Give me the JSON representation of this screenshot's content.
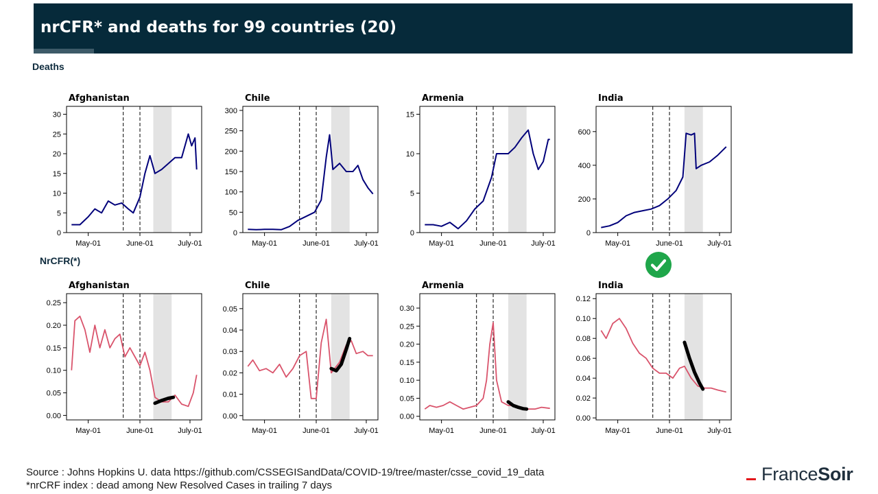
{
  "header": {
    "title": "nrCFR* and deaths for 99 countries (20)"
  },
  "sections": {
    "deaths_label": "Deaths",
    "nrcfr_label": "NrCFR(*)"
  },
  "footer": {
    "source": "Source : Johns Hopkins U. data https://github.com/CSSEGISandData/COVID-19/tree/master/csse_covid_19_data",
    "note": "*nrCRF index : dead among New Resolved  Cases in trailing 7 days"
  },
  "logo": {
    "part1": "France",
    "part2": "Soir"
  },
  "badge": {
    "icon": "checkmark-icon",
    "color": "#1fa64a",
    "under_country": "India"
  },
  "colors": {
    "deaths_line": "#00007a",
    "nrcfr_line": "#d9536b",
    "fit_line": "#000000",
    "shade": "#e3e3e3"
  },
  "chart_data": [
    {
      "type": "line",
      "row": "deaths",
      "title": "Afghanistan",
      "xticks": [
        "May-01",
        "June-01",
        "July-01"
      ],
      "ylim": [
        0,
        32
      ],
      "yticks": [
        0,
        5,
        10,
        15,
        20,
        25,
        30
      ],
      "vlines": [
        "2020-05-22",
        "2020-06-01"
      ],
      "shade": [
        "2020-06-09",
        "2020-06-20"
      ],
      "series": [
        {
          "x": [
            "2020-04-21",
            "2020-04-26",
            "2020-05-01",
            "2020-05-05",
            "2020-05-09",
            "2020-05-13",
            "2020-05-17",
            "2020-05-21",
            "2020-05-25",
            "2020-05-28",
            "2020-06-01",
            "2020-06-04",
            "2020-06-07",
            "2020-06-10",
            "2020-06-14",
            "2020-06-18",
            "2020-06-22",
            "2020-06-26",
            "2020-06-30",
            "2020-07-02",
            "2020-07-04",
            "2020-07-05"
          ],
          "values": [
            2,
            2,
            4,
            6,
            5,
            8,
            7,
            7.5,
            6,
            5,
            9,
            15,
            19.5,
            15,
            16,
            17.5,
            19,
            19,
            25,
            22,
            24,
            16
          ]
        }
      ]
    },
    {
      "type": "line",
      "row": "deaths",
      "title": "Chile",
      "xticks": [
        "May-01",
        "June-01",
        "July-01"
      ],
      "ylim": [
        0,
        310
      ],
      "yticks": [
        0,
        50,
        100,
        150,
        200,
        250,
        300
      ],
      "vlines": [
        "2020-05-22",
        "2020-06-01"
      ],
      "shade": [
        "2020-06-10",
        "2020-06-21"
      ],
      "series": [
        {
          "x": [
            "2020-04-21",
            "2020-04-26",
            "2020-05-01",
            "2020-05-06",
            "2020-05-11",
            "2020-05-16",
            "2020-05-21",
            "2020-05-26",
            "2020-05-31",
            "2020-06-04",
            "2020-06-07",
            "2020-06-09",
            "2020-06-11",
            "2020-06-15",
            "2020-06-19",
            "2020-06-23",
            "2020-06-26",
            "2020-06-29",
            "2020-07-02",
            "2020-07-05"
          ],
          "values": [
            8,
            7,
            8,
            8,
            7,
            15,
            30,
            40,
            50,
            80,
            185,
            240,
            155,
            170,
            150,
            150,
            165,
            130,
            110,
            95
          ]
        }
      ]
    },
    {
      "type": "line",
      "row": "deaths",
      "title": "Armenia",
      "xticks": [
        "May-01",
        "June-01",
        "July-01"
      ],
      "ylim": [
        0,
        16
      ],
      "yticks": [
        0,
        5,
        10,
        15
      ],
      "vlines": [
        "2020-05-22",
        "2020-06-01"
      ],
      "shade": [
        "2020-06-10",
        "2020-06-21"
      ],
      "series": [
        {
          "x": [
            "2020-04-21",
            "2020-04-26",
            "2020-05-01",
            "2020-05-06",
            "2020-05-11",
            "2020-05-16",
            "2020-05-21",
            "2020-05-26",
            "2020-05-31",
            "2020-06-03",
            "2020-06-07",
            "2020-06-10",
            "2020-06-14",
            "2020-06-18",
            "2020-06-22",
            "2020-06-25",
            "2020-06-28",
            "2020-07-01",
            "2020-07-04",
            "2020-07-05"
          ],
          "values": [
            1,
            1,
            0.8,
            1.3,
            0.5,
            1.5,
            3,
            4,
            7,
            10,
            10,
            10,
            10.8,
            12,
            13,
            10,
            8,
            9,
            11.8,
            11.8
          ]
        }
      ]
    },
    {
      "type": "line",
      "row": "deaths",
      "title": "India",
      "xticks": [
        "May-01",
        "June-01",
        "July-01"
      ],
      "ylim": [
        0,
        750
      ],
      "yticks": [
        0,
        200,
        400,
        600
      ],
      "vlines": [
        "2020-05-22",
        "2020-06-01"
      ],
      "shade": [
        "2020-06-10",
        "2020-06-21"
      ],
      "series": [
        {
          "x": [
            "2020-04-21",
            "2020-04-26",
            "2020-05-01",
            "2020-05-06",
            "2020-05-11",
            "2020-05-16",
            "2020-05-21",
            "2020-05-26",
            "2020-05-31",
            "2020-06-05",
            "2020-06-09",
            "2020-06-11",
            "2020-06-14",
            "2020-06-16",
            "2020-06-17",
            "2020-06-20",
            "2020-06-25",
            "2020-06-30",
            "2020-07-05"
          ],
          "values": [
            30,
            40,
            60,
            100,
            120,
            130,
            140,
            160,
            200,
            250,
            330,
            590,
            580,
            590,
            380,
            400,
            420,
            460,
            510
          ]
        }
      ]
    },
    {
      "type": "line",
      "row": "nrcfr",
      "title": "Afghanistan",
      "xticks": [
        "May-01",
        "June-01",
        "July-01"
      ],
      "ylim": [
        -0.01,
        0.27
      ],
      "yticks": [
        0.0,
        0.05,
        0.1,
        0.15,
        0.2,
        0.25
      ],
      "vlines": [
        "2020-05-22",
        "2020-06-01"
      ],
      "shade": [
        "2020-06-09",
        "2020-06-20"
      ],
      "series": [
        {
          "x": [
            "2020-04-21",
            "2020-04-23",
            "2020-04-26",
            "2020-04-29",
            "2020-05-02",
            "2020-05-05",
            "2020-05-08",
            "2020-05-11",
            "2020-05-14",
            "2020-05-17",
            "2020-05-20",
            "2020-05-23",
            "2020-05-26",
            "2020-05-29",
            "2020-06-01",
            "2020-06-04",
            "2020-06-07",
            "2020-06-10",
            "2020-06-14",
            "2020-06-18",
            "2020-06-22",
            "2020-06-26",
            "2020-06-30",
            "2020-07-03",
            "2020-07-05"
          ],
          "values": [
            0.1,
            0.21,
            0.22,
            0.19,
            0.14,
            0.2,
            0.15,
            0.19,
            0.15,
            0.17,
            0.18,
            0.13,
            0.15,
            0.13,
            0.11,
            0.14,
            0.1,
            0.04,
            0.03,
            0.03,
            0.045,
            0.025,
            0.02,
            0.05,
            0.09
          ]
        }
      ],
      "fit": {
        "x": [
          "2020-06-10",
          "2020-06-14",
          "2020-06-18",
          "2020-06-21"
        ],
        "values": [
          0.027,
          0.033,
          0.038,
          0.04
        ]
      }
    },
    {
      "type": "line",
      "row": "nrcfr",
      "title": "Chile",
      "xticks": [
        "May-01",
        "June-01",
        "July-01"
      ],
      "ylim": [
        -0.002,
        0.057
      ],
      "yticks": [
        0.0,
        0.01,
        0.02,
        0.03,
        0.04,
        0.05
      ],
      "vlines": [
        "2020-05-22",
        "2020-06-01"
      ],
      "shade": [
        "2020-06-10",
        "2020-06-21"
      ],
      "series": [
        {
          "x": [
            "2020-04-21",
            "2020-04-24",
            "2020-04-28",
            "2020-05-02",
            "2020-05-06",
            "2020-05-10",
            "2020-05-14",
            "2020-05-18",
            "2020-05-22",
            "2020-05-26",
            "2020-05-29",
            "2020-06-01",
            "2020-06-04",
            "2020-06-07",
            "2020-06-10",
            "2020-06-12",
            "2020-06-15",
            "2020-06-19",
            "2020-06-22",
            "2020-06-25",
            "2020-06-29",
            "2020-07-02",
            "2020-07-05"
          ],
          "values": [
            0.023,
            0.026,
            0.021,
            0.022,
            0.02,
            0.024,
            0.018,
            0.022,
            0.028,
            0.03,
            0.008,
            0.008,
            0.034,
            0.045,
            0.02,
            0.022,
            0.025,
            0.033,
            0.035,
            0.029,
            0.03,
            0.028,
            0.028
          ]
        }
      ],
      "fit": {
        "x": [
          "2020-06-10",
          "2020-06-13",
          "2020-06-16",
          "2020-06-19",
          "2020-06-21"
        ],
        "values": [
          0.022,
          0.021,
          0.024,
          0.031,
          0.036
        ]
      }
    },
    {
      "type": "line",
      "row": "nrcfr",
      "title": "Armenia",
      "xticks": [
        "May-01",
        "June-01",
        "July-01"
      ],
      "ylim": [
        -0.01,
        0.34
      ],
      "yticks": [
        0.0,
        0.05,
        0.1,
        0.15,
        0.2,
        0.25,
        0.3
      ],
      "vlines": [
        "2020-05-22",
        "2020-06-01"
      ],
      "shade": [
        "2020-06-10",
        "2020-06-21"
      ],
      "series": [
        {
          "x": [
            "2020-04-21",
            "2020-04-24",
            "2020-04-28",
            "2020-05-02",
            "2020-05-06",
            "2020-05-10",
            "2020-05-14",
            "2020-05-18",
            "2020-05-22",
            "2020-05-26",
            "2020-05-28",
            "2020-05-30",
            "2020-06-01",
            "2020-06-03",
            "2020-06-06",
            "2020-06-10",
            "2020-06-14",
            "2020-06-18",
            "2020-06-22",
            "2020-06-26",
            "2020-06-30",
            "2020-07-05"
          ],
          "values": [
            0.02,
            0.03,
            0.025,
            0.03,
            0.04,
            0.03,
            0.02,
            0.025,
            0.03,
            0.05,
            0.1,
            0.2,
            0.26,
            0.1,
            0.04,
            0.03,
            0.03,
            0.02,
            0.02,
            0.02,
            0.025,
            0.022
          ]
        }
      ],
      "fit": {
        "x": [
          "2020-06-10",
          "2020-06-13",
          "2020-06-16",
          "2020-06-19",
          "2020-06-21"
        ],
        "values": [
          0.04,
          0.03,
          0.025,
          0.021,
          0.02
        ]
      }
    },
    {
      "type": "line",
      "row": "nrcfr",
      "title": "India",
      "xticks": [
        "May-01",
        "June-01",
        "July-01"
      ],
      "ylim": [
        -0.002,
        0.125
      ],
      "yticks": [
        0.0,
        0.02,
        0.04,
        0.06,
        0.08,
        0.1,
        0.12
      ],
      "vlines": [
        "2020-05-22",
        "2020-06-01"
      ],
      "shade": [
        "2020-06-10",
        "2020-06-21"
      ],
      "series": [
        {
          "x": [
            "2020-04-21",
            "2020-04-24",
            "2020-04-28",
            "2020-05-02",
            "2020-05-06",
            "2020-05-10",
            "2020-05-14",
            "2020-05-18",
            "2020-05-22",
            "2020-05-26",
            "2020-05-30",
            "2020-06-03",
            "2020-06-07",
            "2020-06-10",
            "2020-06-14",
            "2020-06-18",
            "2020-06-22",
            "2020-06-26",
            "2020-06-30",
            "2020-07-05"
          ],
          "values": [
            0.088,
            0.08,
            0.095,
            0.1,
            0.09,
            0.075,
            0.065,
            0.06,
            0.05,
            0.045,
            0.045,
            0.04,
            0.05,
            0.052,
            0.04,
            0.032,
            0.03,
            0.03,
            0.028,
            0.026
          ]
        }
      ],
      "fit": {
        "x": [
          "2020-06-10",
          "2020-06-13",
          "2020-06-16",
          "2020-06-19",
          "2020-06-21"
        ],
        "values": [
          0.076,
          0.06,
          0.046,
          0.035,
          0.029
        ]
      }
    }
  ]
}
